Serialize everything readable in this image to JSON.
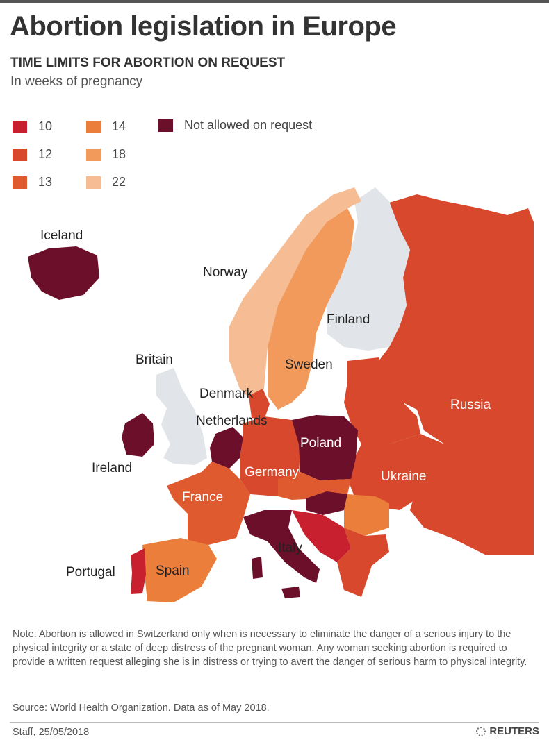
{
  "header": {
    "title": "Abortion legislation in Europe",
    "subtitle": "TIME LIMITS FOR ABORTION ON REQUEST",
    "unit": "In weeks of pregnancy"
  },
  "legend": {
    "items": [
      {
        "label": "10",
        "color": "#c8202f"
      },
      {
        "label": "12",
        "color": "#d8482c"
      },
      {
        "label": "13",
        "color": "#e05a30"
      },
      {
        "label": "14",
        "color": "#eb7e3a"
      },
      {
        "label": "18",
        "color": "#f29a5c"
      },
      {
        "label": "22",
        "color": "#f6bd94"
      },
      {
        "label": "Not allowed on request",
        "color": "#6b0f2a"
      }
    ]
  },
  "map": {
    "labels": {
      "iceland": "Iceland",
      "norway": "Norway",
      "finland": "Finland",
      "sweden": "Sweden",
      "britain": "Britain",
      "denmark": "Denmark",
      "netherlands": "Netherlands",
      "poland": "Poland",
      "ireland": "Ireland",
      "germany": "Germany",
      "ukraine": "Ukraine",
      "russia": "Russia",
      "france": "France",
      "italy": "Italy",
      "portugal": "Portugal",
      "spain": "Spain"
    },
    "colors": {
      "no_data": "#e1e4e8",
      "russia": "#d8482c",
      "norway": "#f6bd94",
      "sweden": "#f29a5c",
      "iceland": "#6b0f2a",
      "ireland": "#6b0f2a",
      "poland": "#6b0f2a",
      "italy": "#6b0f2a",
      "france": "#e05a30",
      "spain": "#eb7e3a",
      "portugal": "#c8202f",
      "germany": "#d8482c",
      "ukraine": "#d8482c",
      "netherlands": "#6b0f2a",
      "hungary": "#6b0f2a",
      "balkans": "#c8202f",
      "romania": "#eb7e3a",
      "denmark": "#d8482c"
    }
  },
  "footer": {
    "note": "Note: Abortion is allowed in Switzerland only when is necessary to eliminate the danger of a serious injury to the physical integrity or a state of deep distress of the pregnant woman. Any woman seeking abortion is required to provide a written request alleging she is in distress or trying to avert the danger of serious harm to physical integrity.",
    "source": "Source:  World Health Organization. Data as of May 2018.",
    "credit": "Staff, 25/05/2018",
    "brand": "REUTERS"
  }
}
